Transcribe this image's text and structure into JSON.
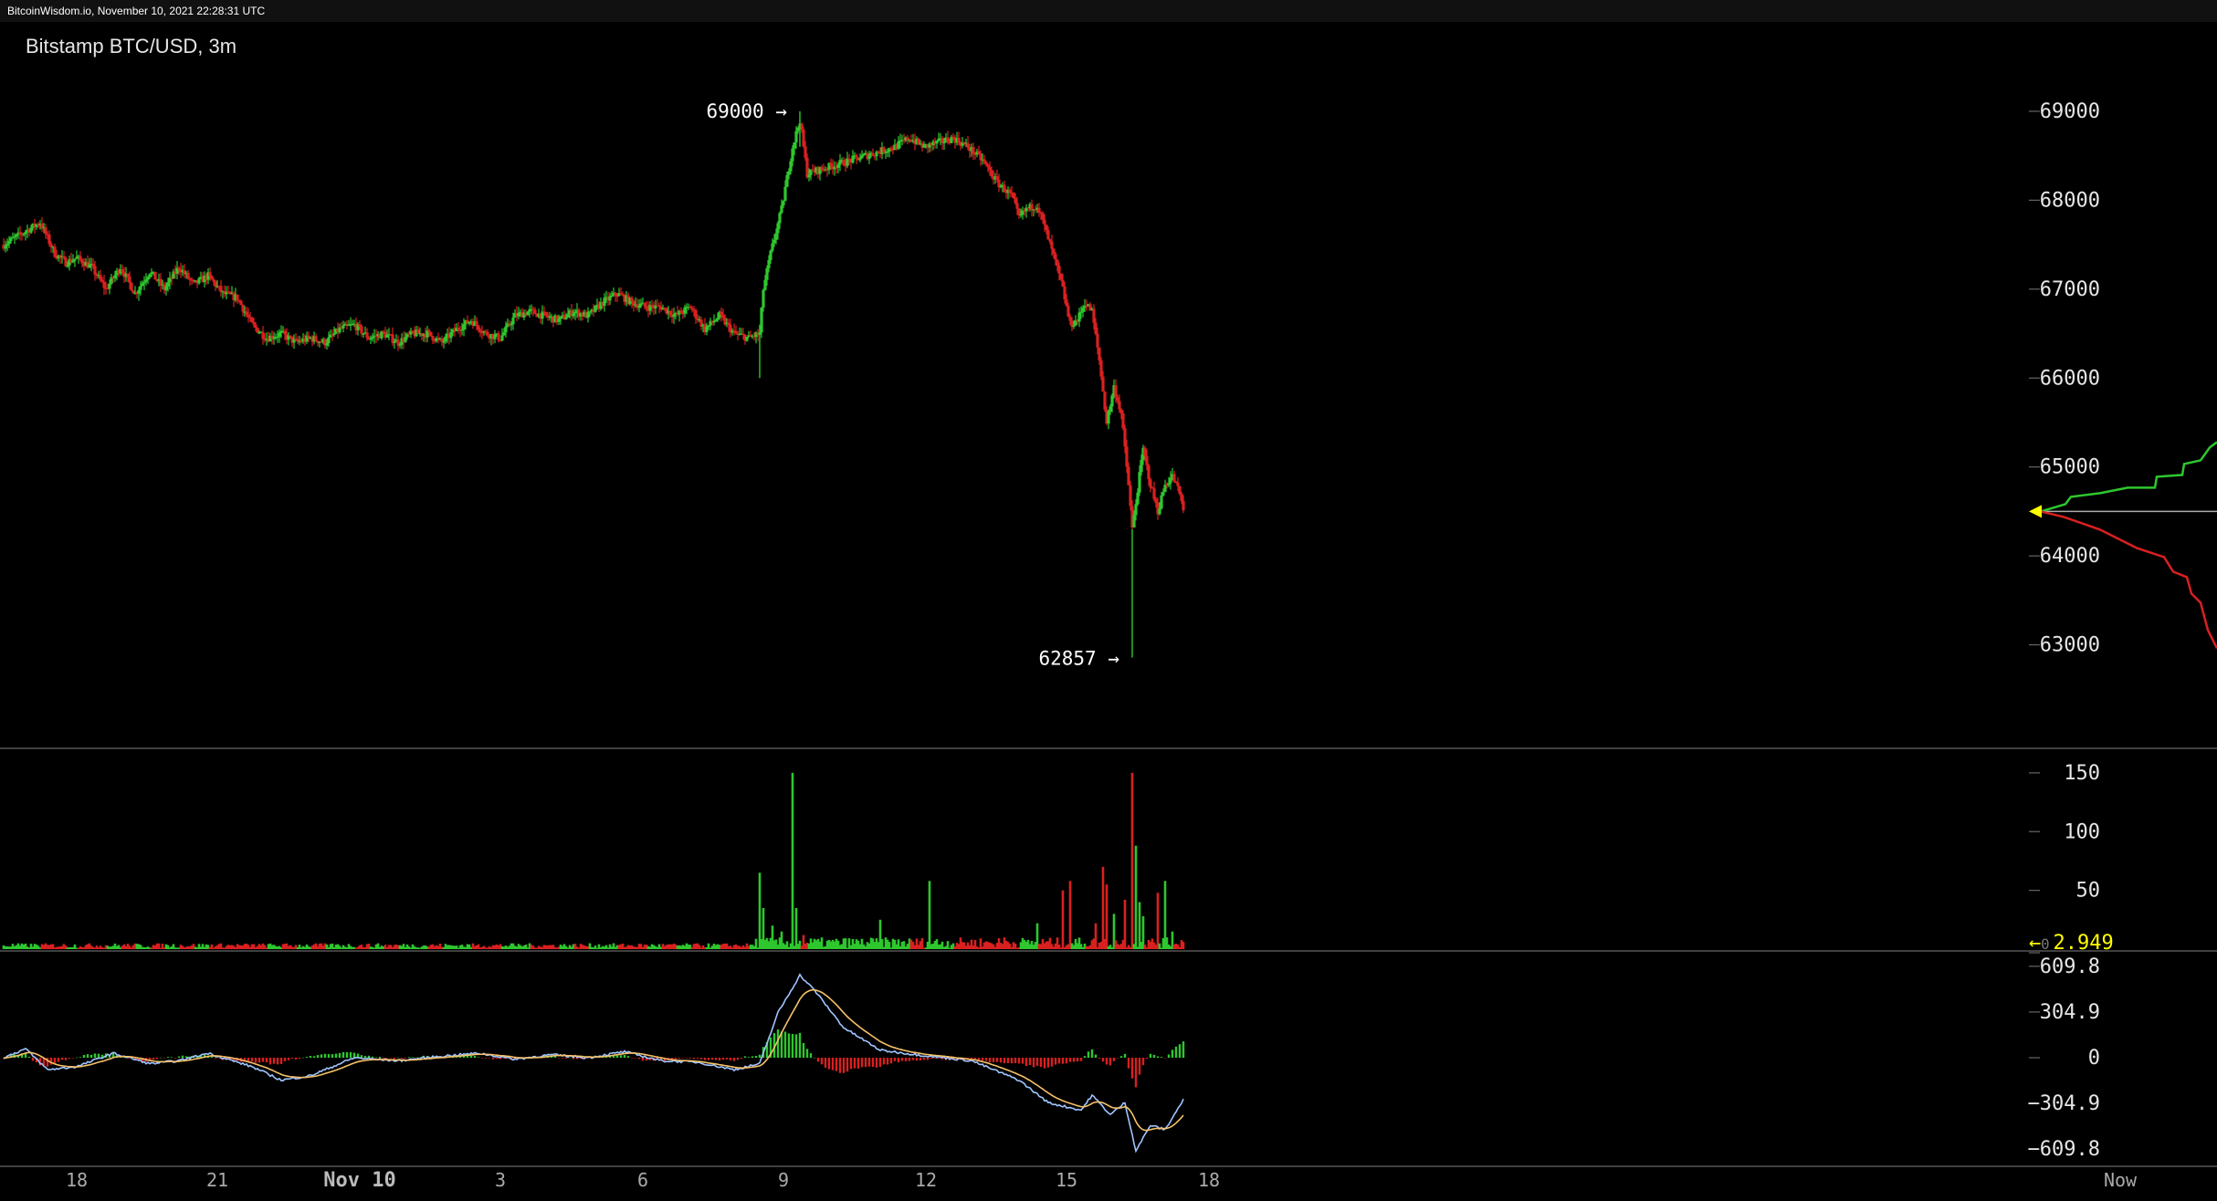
{
  "header": {
    "source_line": "BitcoinWisdom.io, November 10, 2021 22:28:31 UTC"
  },
  "chart_title": "Bitstamp BTC/USD, 3m",
  "chart_data": {
    "type": "candlestick",
    "title": "Bitstamp BTC/USD, 3m",
    "price_axis": {
      "ticks": [
        69000,
        68000,
        67000,
        66000,
        65000,
        64000,
        63000
      ],
      "range": [
        62000,
        69800
      ]
    },
    "annotations": {
      "high_label": "69000 →",
      "high_value": 69000,
      "low_label": "62857 →",
      "low_value": 62857
    },
    "price_anchors": [
      {
        "x": 0,
        "p": 67500
      },
      {
        "x": 12,
        "p": 67650
      },
      {
        "x": 20,
        "p": 67750
      },
      {
        "x": 28,
        "p": 67400
      },
      {
        "x": 34,
        "p": 67300
      },
      {
        "x": 40,
        "p": 67350
      },
      {
        "x": 48,
        "p": 67250
      },
      {
        "x": 56,
        "p": 67000
      },
      {
        "x": 64,
        "p": 67250
      },
      {
        "x": 72,
        "p": 66950
      },
      {
        "x": 80,
        "p": 67200
      },
      {
        "x": 88,
        "p": 67000
      },
      {
        "x": 96,
        "p": 67250
      },
      {
        "x": 104,
        "p": 67050
      },
      {
        "x": 112,
        "p": 67150
      },
      {
        "x": 120,
        "p": 66950
      },
      {
        "x": 128,
        "p": 66900
      },
      {
        "x": 136,
        "p": 66600
      },
      {
        "x": 144,
        "p": 66450
      },
      {
        "x": 152,
        "p": 66500
      },
      {
        "x": 160,
        "p": 66400
      },
      {
        "x": 168,
        "p": 66450
      },
      {
        "x": 176,
        "p": 66400
      },
      {
        "x": 184,
        "p": 66550
      },
      {
        "x": 192,
        "p": 66600
      },
      {
        "x": 200,
        "p": 66450
      },
      {
        "x": 208,
        "p": 66500
      },
      {
        "x": 216,
        "p": 66400
      },
      {
        "x": 224,
        "p": 66500
      },
      {
        "x": 232,
        "p": 66500
      },
      {
        "x": 240,
        "p": 66400
      },
      {
        "x": 248,
        "p": 66550
      },
      {
        "x": 256,
        "p": 66650
      },
      {
        "x": 264,
        "p": 66500
      },
      {
        "x": 272,
        "p": 66450
      },
      {
        "x": 280,
        "p": 66700
      },
      {
        "x": 288,
        "p": 66750
      },
      {
        "x": 296,
        "p": 66700
      },
      {
        "x": 304,
        "p": 66650
      },
      {
        "x": 312,
        "p": 66750
      },
      {
        "x": 320,
        "p": 66700
      },
      {
        "x": 328,
        "p": 66850
      },
      {
        "x": 336,
        "p": 66950
      },
      {
        "x": 344,
        "p": 66850
      },
      {
        "x": 352,
        "p": 66800
      },
      {
        "x": 360,
        "p": 66800
      },
      {
        "x": 368,
        "p": 66700
      },
      {
        "x": 376,
        "p": 66800
      },
      {
        "x": 384,
        "p": 66550
      },
      {
        "x": 392,
        "p": 66700
      },
      {
        "x": 400,
        "p": 66500
      },
      {
        "x": 408,
        "p": 66450
      },
      {
        "x": 414,
        "p": 66500
      },
      {
        "x": 416,
        "p": 67000
      },
      {
        "x": 420,
        "p": 67400
      },
      {
        "x": 426,
        "p": 67900
      },
      {
        "x": 432,
        "p": 68600
      },
      {
        "x": 436,
        "p": 68900
      },
      {
        "x": 440,
        "p": 68300
      },
      {
        "x": 448,
        "p": 68350
      },
      {
        "x": 456,
        "p": 68400
      },
      {
        "x": 464,
        "p": 68450
      },
      {
        "x": 472,
        "p": 68500
      },
      {
        "x": 480,
        "p": 68550
      },
      {
        "x": 488,
        "p": 68600
      },
      {
        "x": 496,
        "p": 68700
      },
      {
        "x": 504,
        "p": 68600
      },
      {
        "x": 512,
        "p": 68650
      },
      {
        "x": 520,
        "p": 68700
      },
      {
        "x": 528,
        "p": 68600
      },
      {
        "x": 536,
        "p": 68450
      },
      {
        "x": 544,
        "p": 68200
      },
      {
        "x": 552,
        "p": 68050
      },
      {
        "x": 556,
        "p": 67800
      },
      {
        "x": 560,
        "p": 67900
      },
      {
        "x": 566,
        "p": 67950
      },
      {
        "x": 570,
        "p": 67700
      },
      {
        "x": 576,
        "p": 67300
      },
      {
        "x": 580,
        "p": 67000
      },
      {
        "x": 584,
        "p": 66600
      },
      {
        "x": 588,
        "p": 66650
      },
      {
        "x": 592,
        "p": 66850
      },
      {
        "x": 596,
        "p": 66750
      },
      {
        "x": 600,
        "p": 66200
      },
      {
        "x": 604,
        "p": 65500
      },
      {
        "x": 608,
        "p": 65900
      },
      {
        "x": 612,
        "p": 65600
      },
      {
        "x": 616,
        "p": 64800
      },
      {
        "x": 618,
        "p": 64300
      },
      {
        "x": 620,
        "p": 64600
      },
      {
        "x": 624,
        "p": 65200
      },
      {
        "x": 628,
        "p": 64800
      },
      {
        "x": 632,
        "p": 64500
      },
      {
        "x": 636,
        "p": 64800
      },
      {
        "x": 640,
        "p": 64900
      },
      {
        "x": 644,
        "p": 64700
      },
      {
        "x": 646,
        "p": 64500
      }
    ],
    "volume_axis": {
      "ticks": [
        150,
        100,
        50,
        0
      ],
      "range": [
        0,
        160
      ],
      "current_label": "← 2.949"
    },
    "volume_spikes": [
      {
        "x": 414,
        "v": 65
      },
      {
        "x": 416,
        "v": 35
      },
      {
        "x": 421,
        "v": 20
      },
      {
        "x": 426,
        "v": 15
      },
      {
        "x": 432,
        "v": 150
      },
      {
        "x": 434,
        "v": 35
      },
      {
        "x": 438,
        "v": 12
      },
      {
        "x": 480,
        "v": 25
      },
      {
        "x": 507,
        "v": 58
      },
      {
        "x": 548,
        "v": 10
      },
      {
        "x": 566,
        "v": 22
      },
      {
        "x": 580,
        "v": 50
      },
      {
        "x": 584,
        "v": 58
      },
      {
        "x": 598,
        "v": 22
      },
      {
        "x": 602,
        "v": 70
      },
      {
        "x": 604,
        "v": 55
      },
      {
        "x": 608,
        "v": 30
      },
      {
        "x": 614,
        "v": 42
      },
      {
        "x": 618,
        "v": 150
      },
      {
        "x": 620,
        "v": 88
      },
      {
        "x": 622,
        "v": 40
      },
      {
        "x": 624,
        "v": 28
      },
      {
        "x": 632,
        "v": 48
      },
      {
        "x": 636,
        "v": 58
      },
      {
        "x": 640,
        "v": 15
      }
    ],
    "macd_axis": {
      "ticks": [
        "609.8",
        "304.9",
        "0",
        "−304.9",
        "−609.8"
      ],
      "range": [
        -700,
        700
      ]
    },
    "macd_anchors": [
      {
        "x": 0,
        "m": 0
      },
      {
        "x": 12,
        "m": 60
      },
      {
        "x": 24,
        "m": -80
      },
      {
        "x": 40,
        "m": -60
      },
      {
        "x": 60,
        "m": 30
      },
      {
        "x": 80,
        "m": -40
      },
      {
        "x": 96,
        "m": -20
      },
      {
        "x": 112,
        "m": 30
      },
      {
        "x": 136,
        "m": -60
      },
      {
        "x": 152,
        "m": -150
      },
      {
        "x": 168,
        "m": -120
      },
      {
        "x": 192,
        "m": 0
      },
      {
        "x": 216,
        "m": -20
      },
      {
        "x": 240,
        "m": 10
      },
      {
        "x": 260,
        "m": 30
      },
      {
        "x": 280,
        "m": -10
      },
      {
        "x": 300,
        "m": 20
      },
      {
        "x": 320,
        "m": 0
      },
      {
        "x": 340,
        "m": 40
      },
      {
        "x": 360,
        "m": -20
      },
      {
        "x": 380,
        "m": -30
      },
      {
        "x": 400,
        "m": -80
      },
      {
        "x": 414,
        "m": -40
      },
      {
        "x": 424,
        "m": 300
      },
      {
        "x": 436,
        "m": 550
      },
      {
        "x": 444,
        "m": 450
      },
      {
        "x": 460,
        "m": 200
      },
      {
        "x": 480,
        "m": 50
      },
      {
        "x": 500,
        "m": 20
      },
      {
        "x": 530,
        "m": -20
      },
      {
        "x": 556,
        "m": -150
      },
      {
        "x": 572,
        "m": -300
      },
      {
        "x": 590,
        "m": -350
      },
      {
        "x": 596,
        "m": -250
      },
      {
        "x": 606,
        "m": -380
      },
      {
        "x": 614,
        "m": -300
      },
      {
        "x": 620,
        "m": -620
      },
      {
        "x": 628,
        "m": -450
      },
      {
        "x": 636,
        "m": -480
      },
      {
        "x": 646,
        "m": -280
      }
    ],
    "date_labels": [
      {
        "x": 40,
        "label": "18"
      },
      {
        "x": 117,
        "label": "21"
      },
      {
        "x": 195,
        "label": "Nov 10"
      },
      {
        "x": 272,
        "label": "3"
      },
      {
        "x": 350,
        "label": "6"
      },
      {
        "x": 427,
        "label": "9"
      },
      {
        "x": 505,
        "label": "12"
      },
      {
        "x": 582,
        "label": "15"
      },
      {
        "x": 660,
        "label": "18"
      },
      {
        "x": 750,
        "label": "Now"
      }
    ],
    "colors": {
      "up": "#2ec72e",
      "down": "#d92020",
      "macd_line": "#9fc4ff",
      "signal_line": "#f5c16a",
      "current_marker": "#ffff00",
      "grid": "#444444"
    }
  }
}
